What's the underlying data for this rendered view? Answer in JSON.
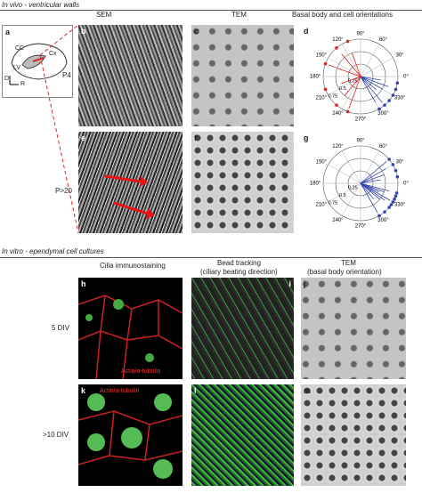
{
  "header_top": "In vivo - ventricular walls",
  "columns_top": [
    "SEM",
    "TEM",
    "Basal body and cell orientations"
  ],
  "panel_a": {
    "letter": "a",
    "labels": [
      "CC",
      "Cx",
      "LV",
      "D",
      "R"
    ]
  },
  "rows_top": [
    "P4",
    "P>20"
  ],
  "panel_letters_top": [
    "b",
    "c",
    "d",
    "e",
    "f",
    "g"
  ],
  "polar": {
    "angles": [
      "90°",
      "60°",
      "30°",
      "0°",
      "330°",
      "300°",
      "270°",
      "240°",
      "210°",
      "180°",
      "150°",
      "120°"
    ],
    "radii": [
      "0.75",
      "0.5",
      "0.25"
    ]
  },
  "header_bottom": "In vitro - ependymal cell cultures",
  "columns_bottom": [
    "Cilia immunostaining",
    "Bead tracking",
    "(ciliary beating direction)",
    "TEM",
    "(basal body orientation)"
  ],
  "rows_bottom": [
    "5 DIV",
    ">10 DIV"
  ],
  "panel_letters_bottom": [
    "h",
    "i",
    "j",
    "k",
    "l",
    "m"
  ],
  "stain_label": "Actin/α-tubulin"
}
